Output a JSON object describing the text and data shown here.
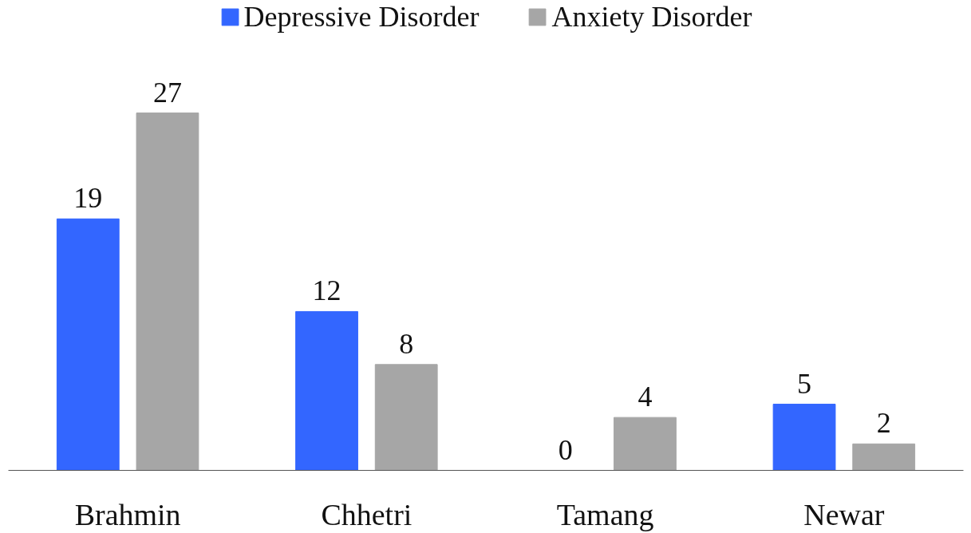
{
  "chart_data": {
    "type": "bar",
    "categories": [
      "Brahmin",
      "Chhetri",
      "Tamang",
      "Newar"
    ],
    "series": [
      {
        "name": "Depressive Disorder",
        "color": "#3366ff",
        "values": [
          19,
          12,
          0,
          5
        ]
      },
      {
        "name": "Anxiety Disorder",
        "color": "#a6a6a6",
        "values": [
          27,
          8,
          4,
          2
        ]
      }
    ],
    "data_labels": true,
    "legend": "top",
    "grid": false
  }
}
